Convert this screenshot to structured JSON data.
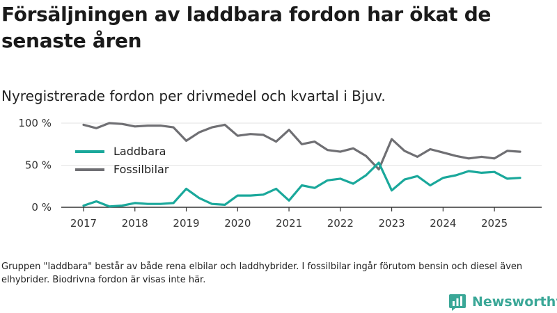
{
  "title": "Försäljningen av laddbara fordon har ökat de senaste åren",
  "subtitle": "Nyregistrerade fordon per drivmedel och kvartal i Bjuv.",
  "footnote": "Gruppen \"laddbara\" består av både rena elbilar och laddhybrider. I fossilbilar ingår förutom bensin och diesel även elhybrider. Biodrivna fordon är visas inte här.",
  "brand": {
    "name": "Newsworthy",
    "icon": "newsworthy-logo-icon",
    "color": "#3aa797"
  },
  "chart_data": {
    "type": "line",
    "title": "Försäljningen av laddbara fordon har ökat de senaste åren",
    "xlabel": "",
    "ylabel": "",
    "xlim": [
      2017,
      2025.5
    ],
    "ylim": [
      0,
      100
    ],
    "x_ticks": [
      2017,
      2018,
      2019,
      2020,
      2021,
      2022,
      2023,
      2024,
      2025
    ],
    "x_tick_labels": [
      "2017",
      "2018",
      "2019",
      "2020",
      "2021",
      "2022",
      "2023",
      "2024",
      "2025"
    ],
    "y_ticks": [
      0,
      50,
      100
    ],
    "y_tick_labels": [
      "0 %",
      "50 %",
      "100 %"
    ],
    "grid": "horizontal",
    "legend_position": "left-middle",
    "x": [
      2017.0,
      2017.25,
      2017.5,
      2017.75,
      2018.0,
      2018.25,
      2018.5,
      2018.75,
      2019.0,
      2019.25,
      2019.5,
      2019.75,
      2020.0,
      2020.25,
      2020.5,
      2020.75,
      2021.0,
      2021.25,
      2021.5,
      2021.75,
      2022.0,
      2022.25,
      2022.5,
      2022.75,
      2023.0,
      2023.25,
      2023.5,
      2023.75,
      2024.0,
      2024.25,
      2024.5,
      2024.75,
      2025.0,
      2025.25,
      2025.5
    ],
    "series": [
      {
        "name": "Laddbara",
        "color": "#1aa89b",
        "values": [
          2,
          7,
          1,
          2,
          5,
          4,
          4,
          5,
          22,
          11,
          4,
          3,
          14,
          14,
          15,
          22,
          8,
          26,
          23,
          32,
          34,
          28,
          38,
          53,
          20,
          33,
          37,
          26,
          35,
          38,
          43,
          41,
          42,
          34,
          35
        ]
      },
      {
        "name": "Fossilbilar",
        "color": "#6f6f73",
        "values": [
          98,
          94,
          100,
          99,
          96,
          97,
          97,
          95,
          79,
          89,
          95,
          98,
          85,
          87,
          86,
          78,
          92,
          75,
          78,
          68,
          66,
          70,
          61,
          45,
          81,
          67,
          60,
          69,
          65,
          61,
          58,
          60,
          58,
          67,
          66
        ]
      }
    ]
  }
}
